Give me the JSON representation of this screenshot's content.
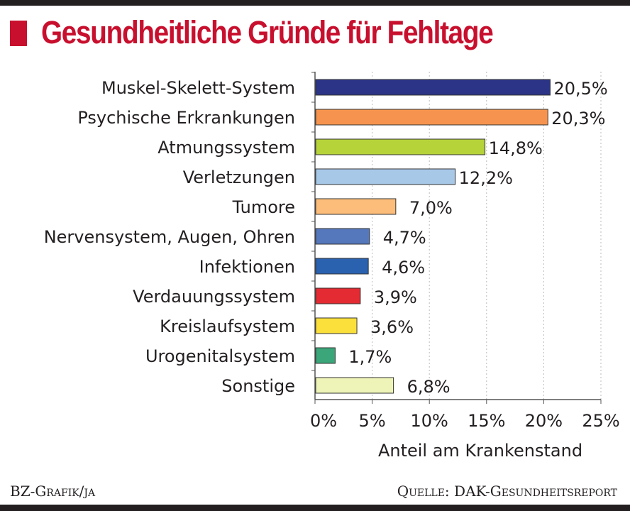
{
  "title": "Gesundheitliche Gründe für Fehltage",
  "footer": {
    "left": "BZ-Grafik/ja",
    "right": "Quelle: DAK-Gesundheitsreport"
  },
  "chart_data": {
    "type": "bar",
    "orientation": "horizontal",
    "title": "Gesundheitliche Gründe für Fehltage",
    "xlabel": "Anteil am Krankenstand",
    "ylabel": "",
    "xlim": [
      0,
      25
    ],
    "xticks": [
      "0%",
      "5%",
      "10%",
      "15%",
      "20%",
      "25%"
    ],
    "grid": "vertical dotted",
    "categories": [
      "Muskel-Skelett-System",
      "Psychische Erkrankungen",
      "Atmungssystem",
      "Verletzungen",
      "Tumore",
      "Nervensystem, Augen, Ohren",
      "Infektionen",
      "Verdauungssystem",
      "Kreislaufsystem",
      "Urogenitalsystem",
      "Sonstige"
    ],
    "values": [
      20.5,
      20.3,
      14.8,
      12.2,
      7.0,
      4.7,
      4.6,
      3.9,
      3.6,
      1.7,
      6.8
    ],
    "data_labels": [
      "20,5%",
      "20,3%",
      "14,8%",
      "12,2%",
      "7,0%",
      "4,7%",
      "4,6%",
      "3,9%",
      "3,6%",
      "1,7%",
      "6,8%"
    ],
    "colors": [
      "#2b3486",
      "#f6944f",
      "#b6d33a",
      "#a8c8e8",
      "#fdbd7a",
      "#5577bb",
      "#2a62b0",
      "#e42a32",
      "#fbe03c",
      "#3aa679",
      "#eef3b8"
    ]
  }
}
